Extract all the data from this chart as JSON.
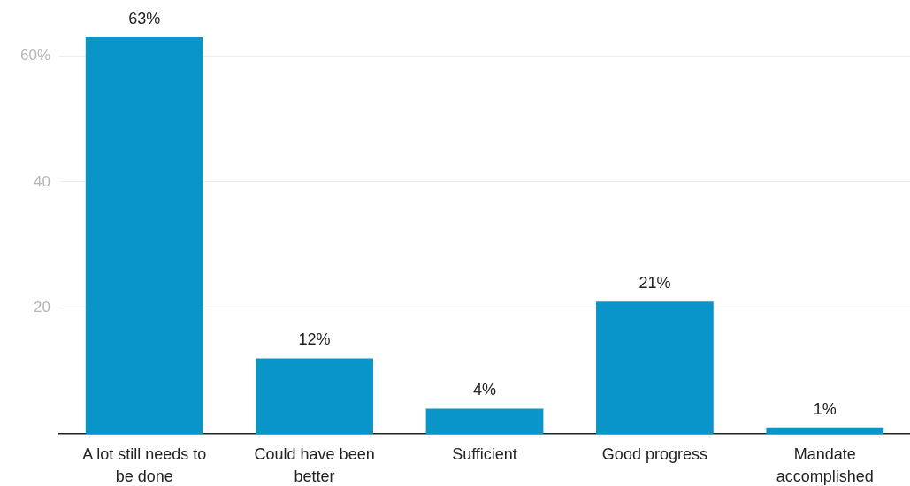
{
  "chart_data": {
    "type": "bar",
    "categories": [
      "A lot still needs to be done",
      "Could have been better",
      "Sufficient",
      "Good progress",
      "Mandate accomplished"
    ],
    "values": [
      63,
      12,
      4,
      21,
      1
    ],
    "color": "#0a95c9",
    "value_labels": [
      "63%",
      "12%",
      "4%",
      "21%",
      "1%"
    ],
    "ylim": [
      0,
      63
    ],
    "yticks": [
      {
        "value": 60,
        "label": "60%"
      },
      40,
      20
    ],
    "grid": "y"
  }
}
